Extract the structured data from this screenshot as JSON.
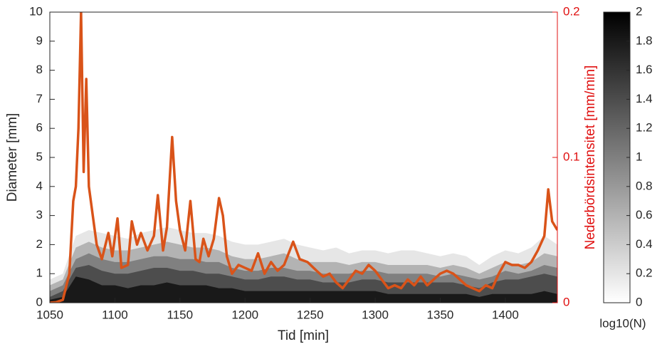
{
  "chart_data": {
    "type": "contour_line",
    "xlabel": "Tid [min]",
    "ylabel": "Diameter [mm]",
    "y2label": "Nederbördsintensitet [mm/min]",
    "xlim": [
      1050,
      1440
    ],
    "xticks": [
      1050,
      1100,
      1150,
      1200,
      1250,
      1300,
      1350,
      1400
    ],
    "ylim": [
      0,
      10
    ],
    "yticks": [
      0,
      1,
      2,
      3,
      4,
      5,
      6,
      7,
      8,
      9,
      10
    ],
    "y2lim": [
      0,
      0.2
    ],
    "y2ticks": [
      0,
      0.1,
      0.2
    ],
    "y2color": "#e01010",
    "contour_x": [
      1050,
      1060,
      1070,
      1080,
      1090,
      1100,
      1110,
      1120,
      1130,
      1140,
      1150,
      1160,
      1170,
      1180,
      1190,
      1200,
      1210,
      1220,
      1230,
      1240,
      1250,
      1260,
      1270,
      1280,
      1290,
      1300,
      1310,
      1320,
      1330,
      1340,
      1350,
      1360,
      1370,
      1380,
      1390,
      1400,
      1410,
      1420,
      1430,
      1440
    ],
    "contours": [
      {
        "level": 0.2,
        "values": [
          0.8,
          1.0,
          2.3,
          2.5,
          2.4,
          2.3,
          2.2,
          2.4,
          2.5,
          2.6,
          2.5,
          2.4,
          2.4,
          2.3,
          2.1,
          2.0,
          2.0,
          2.1,
          2.2,
          2.0,
          1.9,
          1.8,
          1.9,
          1.7,
          1.8,
          1.8,
          1.7,
          1.8,
          1.8,
          1.7,
          1.6,
          1.7,
          1.6,
          1.3,
          1.6,
          1.8,
          1.7,
          1.9,
          2.3,
          2.0
        ]
      },
      {
        "level": 0.6,
        "values": [
          0.6,
          0.8,
          1.9,
          2.1,
          1.9,
          1.8,
          1.8,
          1.9,
          2.0,
          2.1,
          2.0,
          1.9,
          1.9,
          1.8,
          1.6,
          1.5,
          1.5,
          1.6,
          1.7,
          1.5,
          1.4,
          1.4,
          1.4,
          1.3,
          1.4,
          1.4,
          1.3,
          1.3,
          1.3,
          1.3,
          1.2,
          1.3,
          1.2,
          1.0,
          1.2,
          1.4,
          1.3,
          1.4,
          1.7,
          1.6
        ]
      },
      {
        "level": 1.0,
        "values": [
          0.4,
          0.6,
          1.5,
          1.7,
          1.5,
          1.4,
          1.4,
          1.5,
          1.6,
          1.6,
          1.5,
          1.5,
          1.4,
          1.4,
          1.2,
          1.1,
          1.1,
          1.2,
          1.2,
          1.1,
          1.1,
          1.0,
          1.0,
          1.0,
          1.1,
          1.1,
          1.0,
          1.0,
          1.0,
          1.0,
          0.9,
          1.0,
          0.9,
          0.8,
          0.9,
          1.1,
          1.0,
          1.1,
          1.3,
          1.2
        ]
      },
      {
        "level": 1.4,
        "values": [
          0.2,
          0.4,
          1.2,
          1.3,
          1.1,
          1.0,
          1.0,
          1.1,
          1.2,
          1.2,
          1.1,
          1.1,
          1.0,
          1.0,
          0.9,
          0.8,
          0.8,
          0.9,
          0.9,
          0.8,
          0.8,
          0.7,
          0.7,
          0.7,
          0.8,
          0.8,
          0.7,
          0.7,
          0.7,
          0.7,
          0.7,
          0.7,
          0.6,
          0.5,
          0.7,
          0.8,
          0.8,
          0.9,
          1.0,
          0.9
        ]
      },
      {
        "level": 1.8,
        "values": [
          0.1,
          0.2,
          0.9,
          0.8,
          0.6,
          0.6,
          0.5,
          0.6,
          0.6,
          0.7,
          0.6,
          0.6,
          0.6,
          0.5,
          0.5,
          0.4,
          0.4,
          0.4,
          0.4,
          0.4,
          0.4,
          0.4,
          0.4,
          0.4,
          0.4,
          0.4,
          0.3,
          0.3,
          0.3,
          0.3,
          0.3,
          0.3,
          0.3,
          0.2,
          0.3,
          0.3,
          0.3,
          0.3,
          0.4,
          0.3
        ]
      }
    ],
    "line": {
      "color": "#d95319",
      "axis": "y2",
      "x": [
        1050,
        1055,
        1060,
        1065,
        1068,
        1070,
        1072,
        1074,
        1076,
        1078,
        1080,
        1083,
        1086,
        1090,
        1095,
        1098,
        1102,
        1105,
        1110,
        1113,
        1117,
        1120,
        1125,
        1130,
        1133,
        1137,
        1140,
        1144,
        1147,
        1150,
        1154,
        1158,
        1162,
        1165,
        1168,
        1172,
        1176,
        1180,
        1183,
        1186,
        1190,
        1195,
        1200,
        1205,
        1210,
        1215,
        1220,
        1225,
        1230,
        1237,
        1242,
        1248,
        1255,
        1260,
        1265,
        1270,
        1275,
        1280,
        1285,
        1290,
        1295,
        1300,
        1305,
        1310,
        1315,
        1320,
        1325,
        1330,
        1335,
        1340,
        1345,
        1350,
        1355,
        1360,
        1365,
        1370,
        1375,
        1380,
        1385,
        1390,
        1395,
        1400,
        1405,
        1410,
        1415,
        1420,
        1425,
        1430,
        1433,
        1436,
        1440
      ],
      "values": [
        0,
        0.0004,
        0.002,
        0.02,
        0.07,
        0.08,
        0.12,
        0.2,
        0.09,
        0.154,
        0.08,
        0.06,
        0.04,
        0.03,
        0.048,
        0.032,
        0.058,
        0.024,
        0.026,
        0.056,
        0.04,
        0.048,
        0.036,
        0.046,
        0.074,
        0.036,
        0.052,
        0.114,
        0.07,
        0.05,
        0.036,
        0.07,
        0.03,
        0.028,
        0.044,
        0.032,
        0.044,
        0.072,
        0.06,
        0.032,
        0.02,
        0.026,
        0.024,
        0.022,
        0.034,
        0.02,
        0.028,
        0.022,
        0.026,
        0.042,
        0.03,
        0.028,
        0.022,
        0.018,
        0.02,
        0.014,
        0.01,
        0.016,
        0.022,
        0.02,
        0.026,
        0.022,
        0.016,
        0.01,
        0.012,
        0.01,
        0.016,
        0.012,
        0.018,
        0.012,
        0.016,
        0.02,
        0.022,
        0.02,
        0.016,
        0.012,
        0.01,
        0.008,
        0.012,
        0.01,
        0.02,
        0.028,
        0.026,
        0.026,
        0.024,
        0.028,
        0.036,
        0.046,
        0.078,
        0.056,
        0.05
      ]
    },
    "colorbar": {
      "lim": [
        0,
        2
      ],
      "ticks": [
        0,
        0.2,
        0.4,
        0.6,
        0.8,
        1,
        1.2,
        1.4,
        1.6,
        1.8,
        2
      ],
      "label": "log10(N)"
    }
  }
}
